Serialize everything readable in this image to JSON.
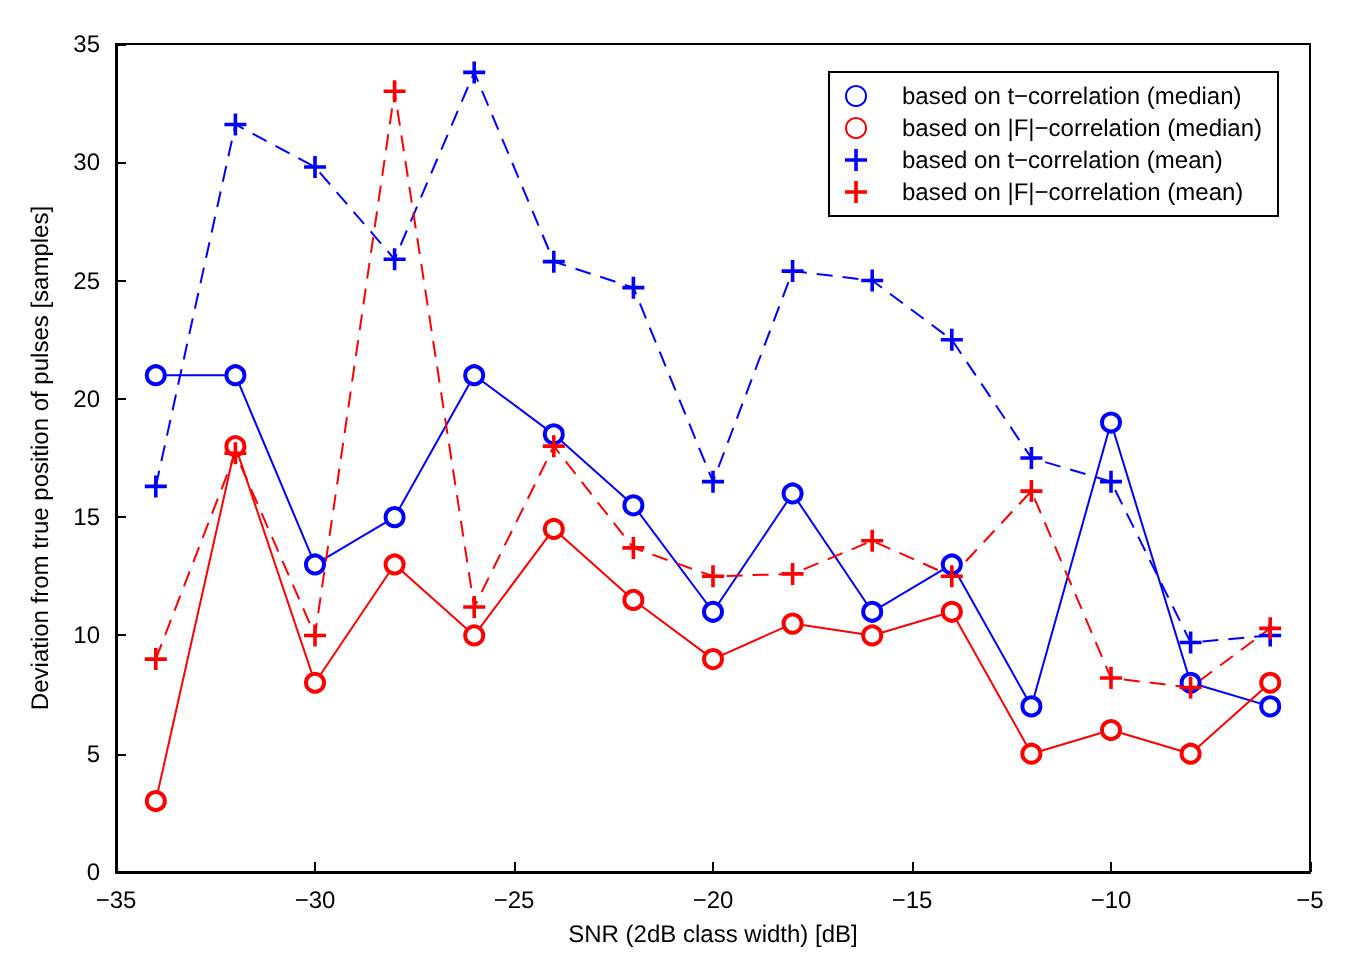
{
  "chart_data": {
    "type": "line",
    "xlabel": "SNR (2dB class width) [dB]",
    "ylabel": "Deviation from true position of pulses [samples]",
    "x": [
      -34,
      -32,
      -30,
      -28,
      -26,
      -24,
      -22,
      -20,
      -18,
      -16,
      -14,
      -12,
      -10,
      -8,
      -6
    ],
    "series": [
      {
        "name": "based on t−correlation (median)",
        "color": "#0000ff",
        "marker": "circle",
        "line_style": "solid",
        "values": [
          21,
          21,
          13,
          15,
          21,
          18.5,
          15.5,
          11,
          16,
          11,
          13,
          7,
          19,
          8,
          7
        ]
      },
      {
        "name": "based on |F|−correlation (median)",
        "color": "#ff0000",
        "marker": "circle",
        "line_style": "solid",
        "values": [
          3,
          18,
          8,
          13,
          10,
          14.5,
          11.5,
          9,
          10.5,
          10,
          11,
          5,
          6,
          5,
          8
        ]
      },
      {
        "name": "based on t−correlation (mean)",
        "color": "#0000ff",
        "marker": "cross",
        "line_style": "dashed",
        "values": [
          16.3,
          31.6,
          29.8,
          25.9,
          33.8,
          25.8,
          24.7,
          16.5,
          25.4,
          25,
          22.5,
          17.5,
          16.5,
          9.7,
          10
        ]
      },
      {
        "name": "based on |F|−correlation (mean)",
        "color": "#ff0000",
        "marker": "cross",
        "line_style": "dashed",
        "values": [
          9,
          17.7,
          10,
          33,
          11.2,
          18,
          13.7,
          12.5,
          12.6,
          14,
          12.5,
          16.1,
          8.2,
          7.8,
          10.3
        ]
      }
    ],
    "xlim": [
      -35,
      -5
    ],
    "xticks": [
      -35,
      -30,
      -25,
      -20,
      -15,
      -10,
      -5
    ],
    "ylim": [
      0,
      35
    ],
    "yticks": [
      0,
      5,
      10,
      15,
      20,
      25,
      30,
      35
    ],
    "grid": false,
    "legend": "top right"
  }
}
